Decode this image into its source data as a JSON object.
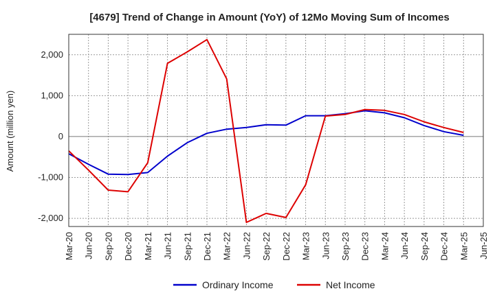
{
  "chart_data": {
    "type": "line",
    "title": "[4679]  Trend of Change in Amount (YoY) of 12Mo Moving Sum of Incomes",
    "xlabel": "",
    "ylabel": "Amount (million yen)",
    "ylim": [
      -2200,
      2500
    ],
    "yticks": [
      -2000,
      -1000,
      0,
      1000,
      2000
    ],
    "ytick_labels": [
      "-2,000",
      "-1,000",
      "0",
      "1,000",
      "2,000"
    ],
    "categories": [
      "Mar-20",
      "Jun-20",
      "Sep-20",
      "Dec-20",
      "Mar-21",
      "Jun-21",
      "Sep-21",
      "Dec-21",
      "Mar-22",
      "Jun-22",
      "Sep-22",
      "Dec-22",
      "Mar-23",
      "Jun-23",
      "Sep-23",
      "Dec-23",
      "Mar-24",
      "Jun-24",
      "Sep-24",
      "Dec-24",
      "Mar-25",
      "Jun-25"
    ],
    "grid": true,
    "legend_position": "bottom-center",
    "series": [
      {
        "name": "Ordinary Income",
        "color": "#0000cc",
        "values": [
          -420,
          -680,
          -920,
          -930,
          -880,
          -480,
          -150,
          80,
          180,
          220,
          290,
          280,
          510,
          510,
          560,
          630,
          580,
          460,
          270,
          120,
          30,
          null
        ]
      },
      {
        "name": "Net Income",
        "color": "#dd0000",
        "values": [
          -350,
          -820,
          -1310,
          -1350,
          -640,
          1790,
          2070,
          2370,
          1410,
          -2100,
          -1880,
          -1980,
          -1180,
          500,
          540,
          660,
          640,
          540,
          360,
          220,
          100,
          null
        ]
      }
    ]
  }
}
